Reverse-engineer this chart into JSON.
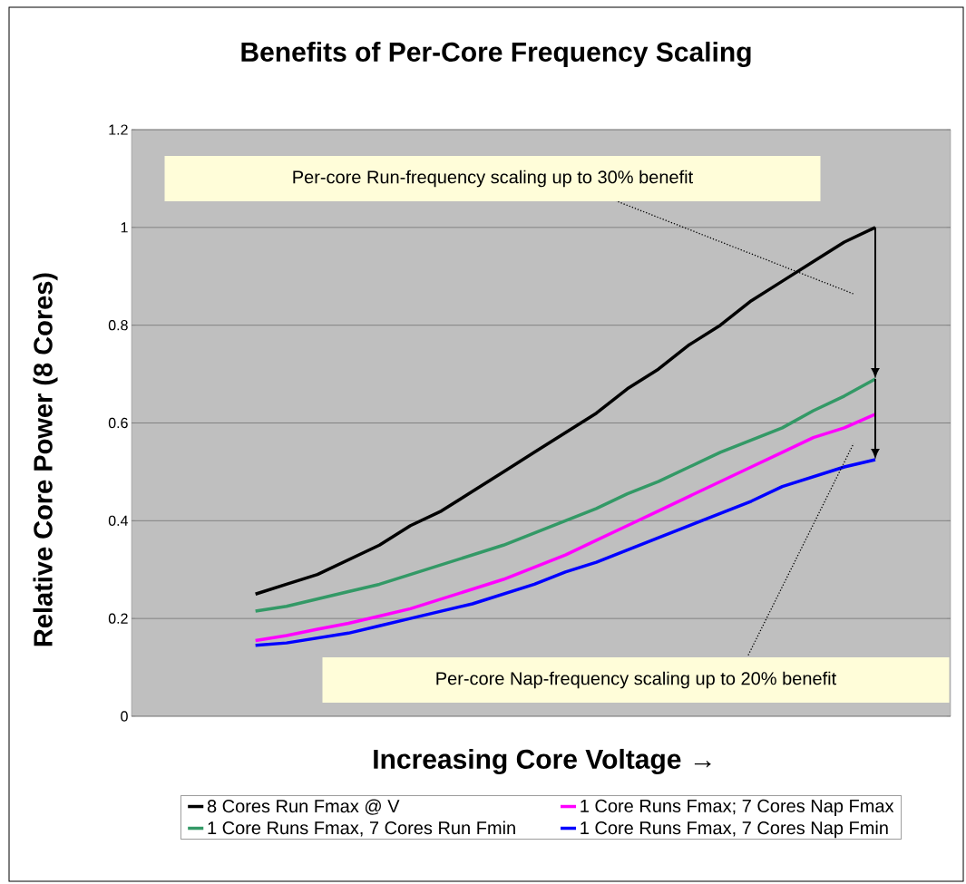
{
  "chart_data": {
    "type": "line",
    "title": "Benefits of Per-Core Frequency Scaling",
    "xlabel": "Increasing Core Voltage →",
    "ylabel": "Relative Core Power (8 Cores)",
    "categories": [
      null,
      null,
      null,
      null,
      null,
      null,
      null,
      null,
      null,
      null,
      null,
      null,
      null,
      null,
      null,
      null,
      null,
      null,
      null,
      null,
      null
    ],
    "series": [
      {
        "name": "8 Cores Run Fmax @ V",
        "color": "#000000",
        "values": [
          0.25,
          0.27,
          0.29,
          0.32,
          0.35,
          0.39,
          0.42,
          0.46,
          0.5,
          0.54,
          0.58,
          0.62,
          0.67,
          0.71,
          0.76,
          0.8,
          0.85,
          0.89,
          0.93,
          0.97,
          1.0
        ]
      },
      {
        "name": "1 Core Runs Fmax, 7 Cores Run Fmin",
        "color": "#339966",
        "values": [
          0.215,
          0.225,
          0.24,
          0.255,
          0.27,
          0.29,
          0.31,
          0.33,
          0.35,
          0.375,
          0.4,
          0.425,
          0.455,
          0.48,
          0.51,
          0.54,
          0.565,
          0.59,
          0.625,
          0.655,
          0.69
        ]
      },
      {
        "name": "1 Core Runs Fmax; 7 Cores Nap Fmax",
        "color": "#ff00ff",
        "values": [
          0.155,
          0.165,
          0.178,
          0.19,
          0.205,
          0.22,
          0.24,
          0.26,
          0.28,
          0.305,
          0.33,
          0.36,
          0.39,
          0.42,
          0.45,
          0.48,
          0.51,
          0.54,
          0.57,
          0.59,
          0.618
        ]
      },
      {
        "name": "1 Core Runs Fmax, 7 Cores Nap Fmin",
        "color": "#0000ff",
        "values": [
          0.145,
          0.15,
          0.16,
          0.17,
          0.185,
          0.2,
          0.215,
          0.23,
          0.25,
          0.27,
          0.295,
          0.315,
          0.34,
          0.365,
          0.39,
          0.415,
          0.44,
          0.47,
          0.49,
          0.51,
          0.525
        ]
      }
    ],
    "ylim": [
      0,
      1.2
    ],
    "yticks": [
      0,
      0.2,
      0.4,
      0.6,
      0.8,
      1,
      1.2
    ],
    "grid": "y",
    "legend": "bottom",
    "marker": "none",
    "line_style": "solid",
    "annotations": [
      "Per-core Run-frequency scaling up to 30% benefit",
      "Per-core Nap-frequency scaling up to 20% benefit"
    ]
  }
}
